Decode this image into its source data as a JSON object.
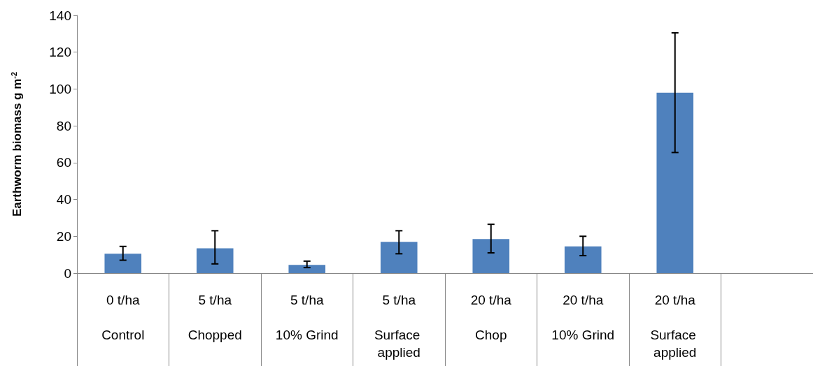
{
  "chart_data": {
    "type": "bar",
    "ylabel": "Earthworm biomass g m$^{-2}$",
    "categories": [
      "0 t/ha\nControl",
      "5 t/ha\nChopped",
      "5 t/ha\n10% Grind",
      "5 t/ha\nSurface applied",
      "20 t/ha\nChop",
      "20 t/ha\n10% Grind",
      "20 t/ha\nSurface applied",
      null
    ],
    "values": [
      10.5,
      13.5,
      4.5,
      17,
      18.5,
      14.5,
      98,
      null
    ],
    "errors": [
      [
        7,
        14.5
      ],
      [
        5,
        23
      ],
      [
        3,
        6.5
      ],
      [
        10.5,
        23
      ],
      [
        11,
        26.5
      ],
      [
        9.5,
        20
      ],
      [
        65.5,
        130.5
      ],
      null
    ],
    "color": "#4f81bd",
    "ylim": [
      0,
      140
    ],
    "yticks": [
      0,
      20,
      40,
      60,
      80,
      100,
      120,
      140
    ],
    "grid": false
  }
}
